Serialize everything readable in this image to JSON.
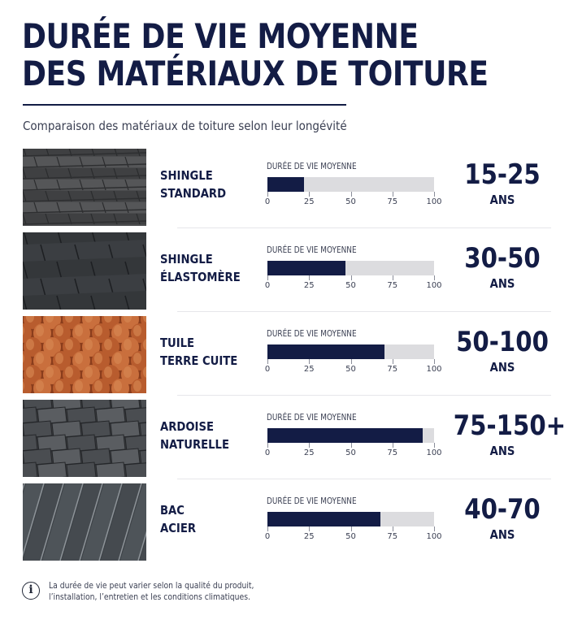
{
  "header": {
    "title_line1": "DURÉE DE VIE MOYENNE",
    "title_line2": "DES MATÉRIAUX DE TOITURE",
    "subtitle": "Comparaison des matériaux de toiture selon leur longévité"
  },
  "colors": {
    "navy": "#131c45",
    "track": "#dcdcdf",
    "text_muted": "#3a3f52"
  },
  "chart_data": {
    "type": "bar",
    "orientation": "horizontal",
    "bar_caption": "DURÉE DE VIE MOYENNE",
    "xlim": [
      0,
      100
    ],
    "ticks": [
      "0",
      "25",
      "50",
      "75",
      "100"
    ],
    "items": [
      {
        "name_line1": "SHINGLE",
        "name_line2": "STANDARD",
        "value": 22,
        "range": "15-25",
        "unit": "ANS",
        "image": "asphalt-shingle-photo"
      },
      {
        "name_line1": "SHINGLE",
        "name_line2": "ÉLASTOMÈRE",
        "value": 47,
        "range": "30-50",
        "unit": "ANS",
        "image": "elastomer-shingle-photo"
      },
      {
        "name_line1": "TUILE",
        "name_line2": "TERRE CUITE",
        "value": 70,
        "range": "50-100",
        "unit": "ANS",
        "image": "clay-tile-photo"
      },
      {
        "name_line1": "ARDOISE",
        "name_line2": "NATURELLE",
        "value": 93,
        "range": "75-150+",
        "unit": "ANS",
        "image": "natural-slate-photo"
      },
      {
        "name_line1": "BAC",
        "name_line2": "ACIER",
        "value": 68,
        "range": "40-70",
        "unit": "ANS",
        "image": "steel-panel-photo"
      }
    ]
  },
  "footer": {
    "icon": "info-icon",
    "line1": "La durée de vie peut varier selon la qualité du produit,",
    "line2": "l’installation, l’entretien et les conditions climatiques."
  }
}
